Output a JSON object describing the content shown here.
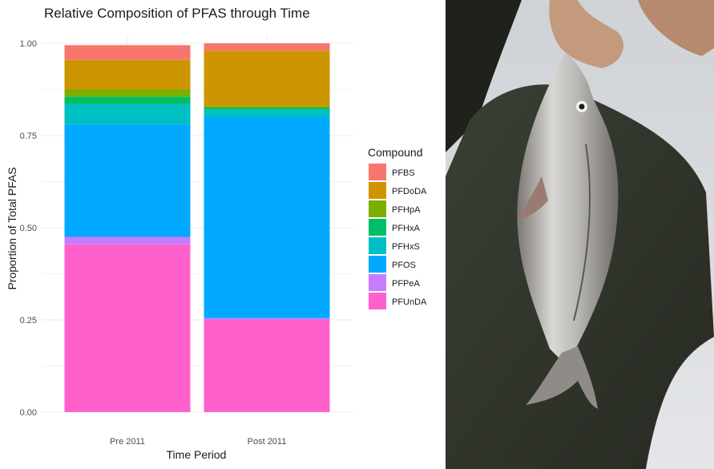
{
  "chart_data": {
    "type": "bar",
    "stacked": true,
    "title": "Relative Composition of PFAS through Time",
    "xlabel": "Time Period",
    "ylabel": "Proportion of Total PFAS",
    "categories": [
      "Pre 2011",
      "Post 2011"
    ],
    "ylim": [
      0,
      1
    ],
    "y_ticks": [
      "0.00",
      "0.25",
      "0.50",
      "0.75",
      "1.00"
    ],
    "y_tick_values": [
      0,
      0.25,
      0.5,
      0.75,
      1.0
    ],
    "grid": true,
    "legend_position": "right",
    "legend_title": "Compound",
    "series": [
      {
        "name": "PFBS",
        "color": "#F8766D",
        "values": [
          0.04,
          0.02
        ]
      },
      {
        "name": "PFDoDA",
        "color": "#CD9600",
        "values": [
          0.08,
          0.15
        ]
      },
      {
        "name": "PFHpA",
        "color": "#7CAE00",
        "values": [
          0.02,
          0.005
        ]
      },
      {
        "name": "PFHxA",
        "color": "#00BE67",
        "values": [
          0.02,
          0.005
        ]
      },
      {
        "name": "PFHxS",
        "color": "#00BFC4",
        "values": [
          0.055,
          0.02
        ]
      },
      {
        "name": "PFOS",
        "color": "#00A9FF",
        "values": [
          0.305,
          0.545
        ]
      },
      {
        "name": "PFPeA",
        "color": "#C77CFF",
        "values": [
          0.02,
          0.005
        ]
      },
      {
        "name": "PFUnDA",
        "color": "#FF61CC",
        "values": [
          0.455,
          0.25
        ]
      }
    ]
  },
  "photo": {
    "subject": "person holding a caught fish"
  }
}
